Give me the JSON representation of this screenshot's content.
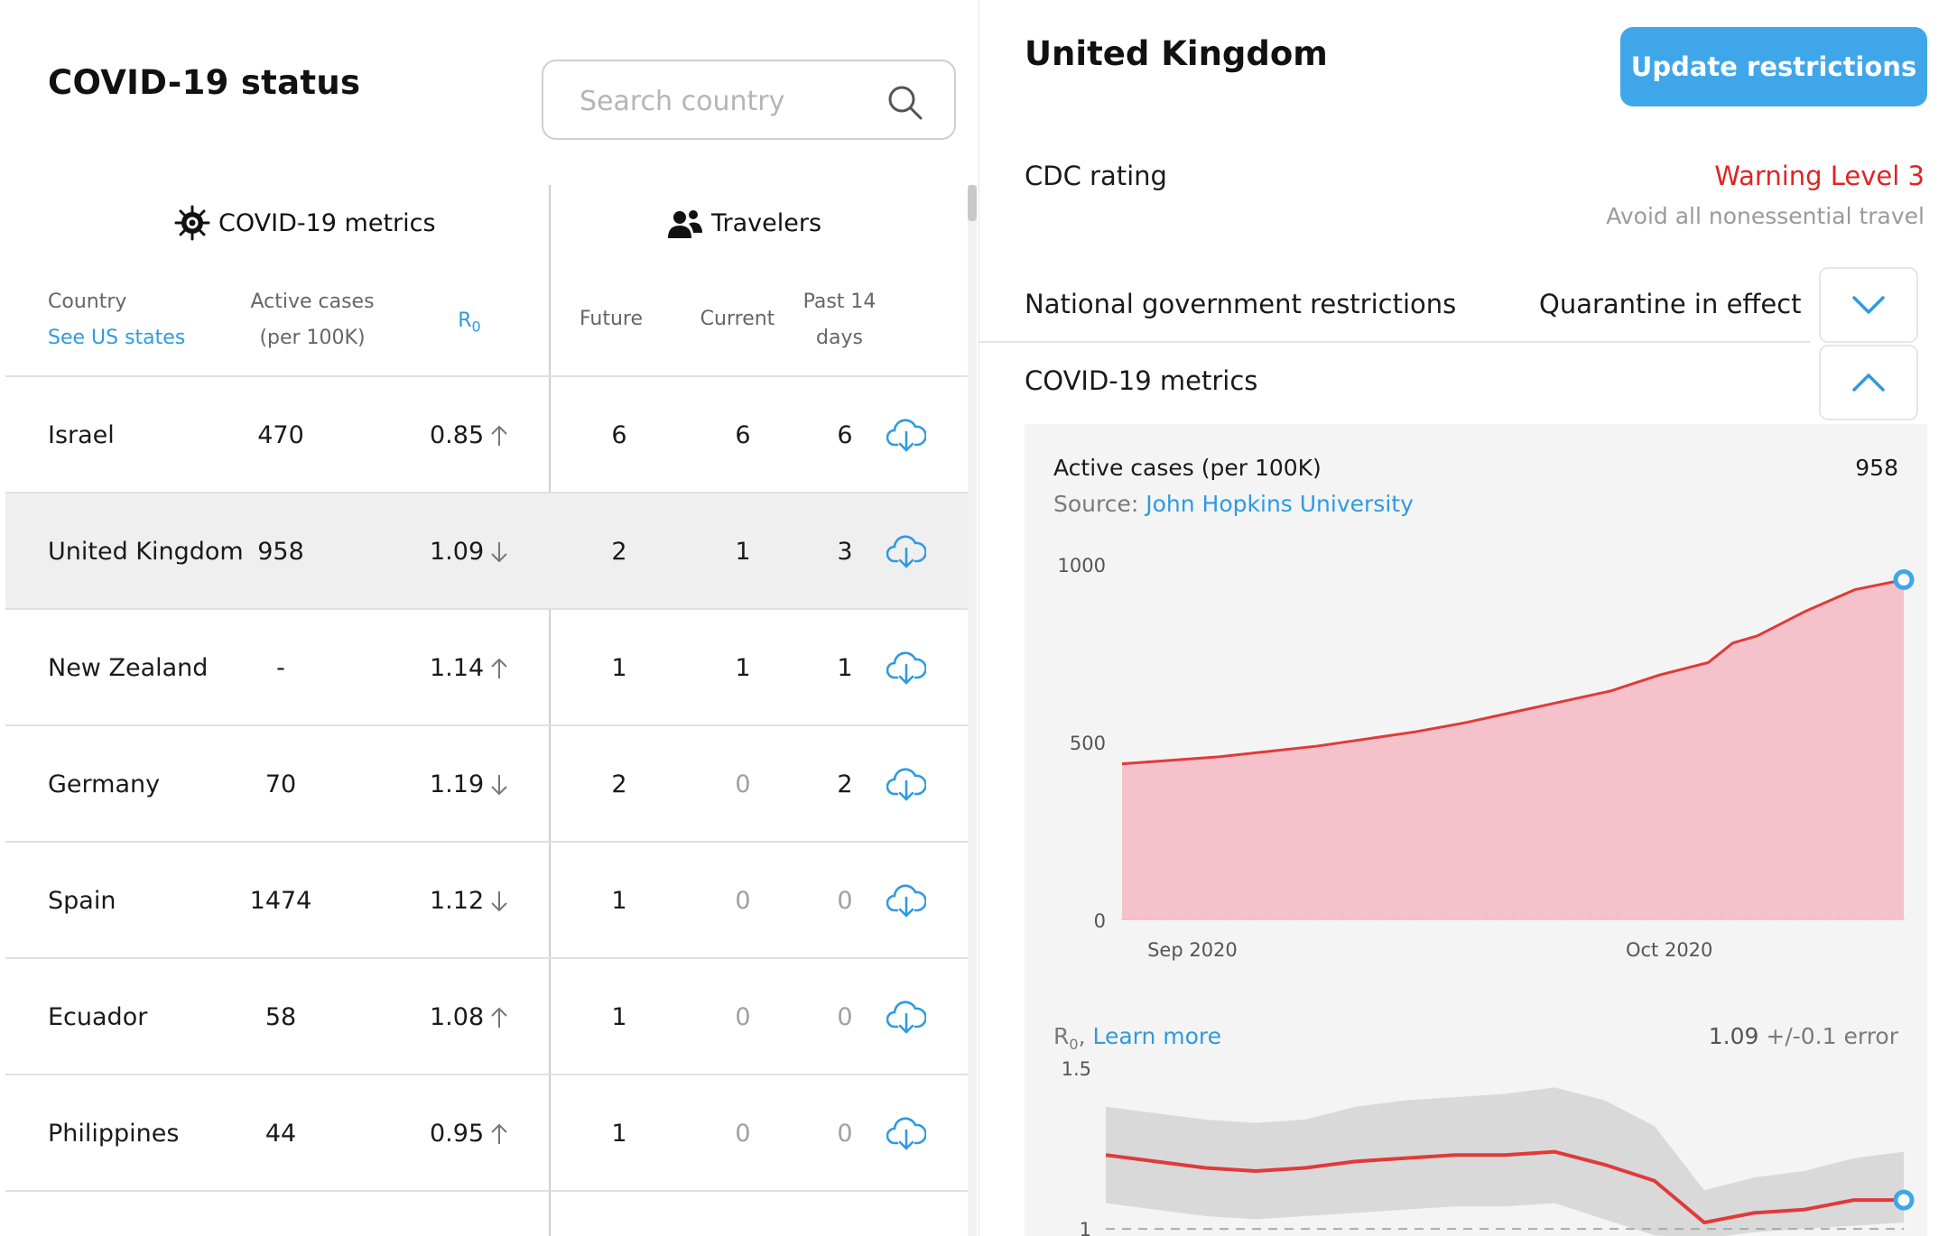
{
  "app": {
    "title": "COVID-19 status"
  },
  "search": {
    "placeholder": "Search country"
  },
  "groups": {
    "metrics": "COVID-19 metrics",
    "travelers": "Travelers"
  },
  "columns": {
    "country": "Country",
    "see_us_states": "See US states",
    "active_cases_1": "Active cases",
    "active_cases_2": "(per 100K)",
    "r0": "R",
    "r0_sub": "0",
    "future": "Future",
    "current": "Current",
    "past_1": "Past 14",
    "past_2": "days"
  },
  "rows": [
    {
      "country": "Israel",
      "active": "470",
      "r0": "0.85",
      "trend": "up",
      "future": "6",
      "current": "6",
      "past": "6",
      "selected": false
    },
    {
      "country": "United Kingdom",
      "active": "958",
      "r0": "1.09",
      "trend": "down",
      "future": "2",
      "current": "1",
      "past": "3",
      "selected": true
    },
    {
      "country": "New Zealand",
      "active": "-",
      "r0": "1.14",
      "trend": "up",
      "future": "1",
      "current": "1",
      "past": "1",
      "selected": false
    },
    {
      "country": "Germany",
      "active": "70",
      "r0": "1.19",
      "trend": "down",
      "future": "2",
      "current": "0",
      "past": "2",
      "selected": false
    },
    {
      "country": "Spain",
      "active": "1474",
      "r0": "1.12",
      "trend": "down",
      "future": "1",
      "current": "0",
      "past": "0",
      "selected": false
    },
    {
      "country": "Ecuador",
      "active": "58",
      "r0": "1.08",
      "trend": "up",
      "future": "1",
      "current": "0",
      "past": "0",
      "selected": false
    },
    {
      "country": "Philippines",
      "active": "44",
      "r0": "0.95",
      "trend": "up",
      "future": "1",
      "current": "0",
      "past": "0",
      "selected": false
    }
  ],
  "detail": {
    "country": "United Kingdom",
    "update_button": "Update restrictions",
    "cdc_label": "CDC rating",
    "cdc_rating": "Warning Level 3",
    "cdc_advice": "Avoid all nonessential travel",
    "gov_label": "National government restrictions",
    "gov_status": "Quarantine in effect",
    "metrics_label": "COVID-19 metrics",
    "active_title": "Active cases (per 100K)",
    "active_value": "958",
    "source_prefix": "Source:",
    "source_link": "John Hopkins University",
    "r0_prefix": "R",
    "r0_sub": "0",
    "r0_comma": ",",
    "r0_link": "Learn more",
    "r0_value": "1.09",
    "r0_error": "+/-0.1 error"
  },
  "colors": {
    "accent": "#3fa7e9",
    "warning": "#e02424",
    "line": "#e03a3a",
    "area": "#f5c2cb",
    "band": "#d9d9d9"
  },
  "chart_data": [
    {
      "type": "area",
      "title": "Active cases (per 100K)",
      "ylim": [
        0,
        1000
      ],
      "yticks": [
        0,
        500,
        1000
      ],
      "xticks": [
        "Sep 2020",
        "Oct 2020"
      ],
      "x": [
        0,
        4,
        8,
        12,
        16,
        20,
        24,
        28,
        32,
        36,
        40,
        44,
        48,
        50,
        52,
        56,
        60,
        64
      ],
      "values": [
        440,
        450,
        460,
        475,
        490,
        510,
        530,
        555,
        585,
        615,
        645,
        690,
        725,
        780,
        800,
        870,
        930,
        958
      ]
    },
    {
      "type": "line",
      "title": "R0",
      "ylim": [
        0.95,
        1.5
      ],
      "yticks": [
        1,
        1.5
      ],
      "baseline": 1,
      "x": [
        0,
        4,
        8,
        12,
        16,
        20,
        24,
        28,
        32,
        36,
        40,
        44,
        48,
        52,
        56,
        60,
        64
      ],
      "values": [
        1.23,
        1.21,
        1.19,
        1.18,
        1.19,
        1.21,
        1.22,
        1.23,
        1.23,
        1.24,
        1.2,
        1.15,
        1.02,
        1.05,
        1.06,
        1.09,
        1.09
      ],
      "band_low": [
        1.08,
        1.06,
        1.04,
        1.03,
        1.04,
        1.05,
        1.06,
        1.07,
        1.07,
        1.08,
        1.03,
        0.98,
        0.97,
        0.99,
        1.0,
        1.01,
        1.02
      ],
      "band_high": [
        1.38,
        1.36,
        1.34,
        1.33,
        1.34,
        1.38,
        1.4,
        1.41,
        1.42,
        1.44,
        1.4,
        1.32,
        1.12,
        1.16,
        1.18,
        1.22,
        1.24
      ]
    }
  ]
}
